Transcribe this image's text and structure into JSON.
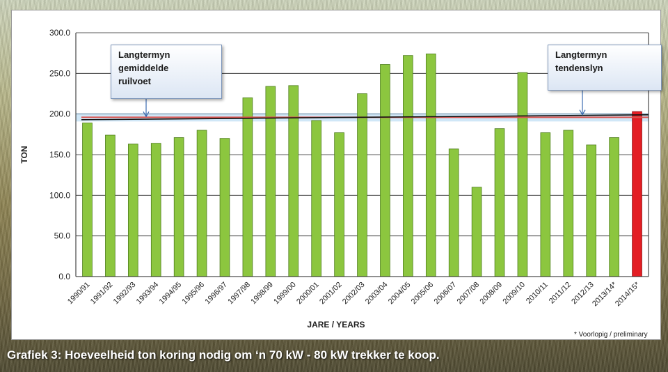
{
  "caption": "Grafiek 3: Hoeveelheid ton koring nodig om ‘n 70 kW - 80 kW trekker te koop.",
  "callouts": {
    "average": "Langtermyn\ngemiddelde\nruilvoet",
    "trend": "Langtermyn\ntendenslyn"
  },
  "footnote": "* Voorlopig  / preliminary",
  "chart_data": {
    "type": "bar",
    "xlabel": "JARE / YEARS",
    "ylabel": "TON",
    "ylim": [
      0,
      300
    ],
    "yticks": [
      "0.0",
      "50.0",
      "100.0",
      "150.0",
      "200.0",
      "250.0",
      "300.0"
    ],
    "grid": true,
    "categories": [
      "1990/91",
      "1991/92",
      "1992/93",
      "1993/94",
      "1994/95",
      "1995/96",
      "1996/97",
      "1997/98",
      "1998/99",
      "1999/00",
      "2000/01",
      "2001/02",
      "2002/03",
      "2003/04",
      "2004/05",
      "2005/06",
      "2006/07",
      "2007/08",
      "2008/09",
      "2009/10",
      "2010/11",
      "2011/12",
      "2012/13",
      "2013/14*",
      "2014/15*"
    ],
    "values": [
      189,
      174,
      163,
      164,
      171,
      180,
      170,
      220,
      234,
      235,
      192,
      177,
      225,
      261,
      272,
      274,
      157,
      110,
      182,
      251,
      177,
      180,
      162,
      171,
      203
    ],
    "colors": {
      "bar": "#8cc63f",
      "bar_border": "#4e7d1d",
      "highlight": "#e31e24",
      "highlight_border": "#8a0f12"
    },
    "highlight_index": 24,
    "average_line": 196,
    "trend_line": {
      "start": 193,
      "end": 199
    },
    "line_colors": {
      "average": "#d9534f",
      "average_band": "#a9d4f0",
      "trend": "#111111",
      "pointer": "#3a6ab0"
    }
  }
}
